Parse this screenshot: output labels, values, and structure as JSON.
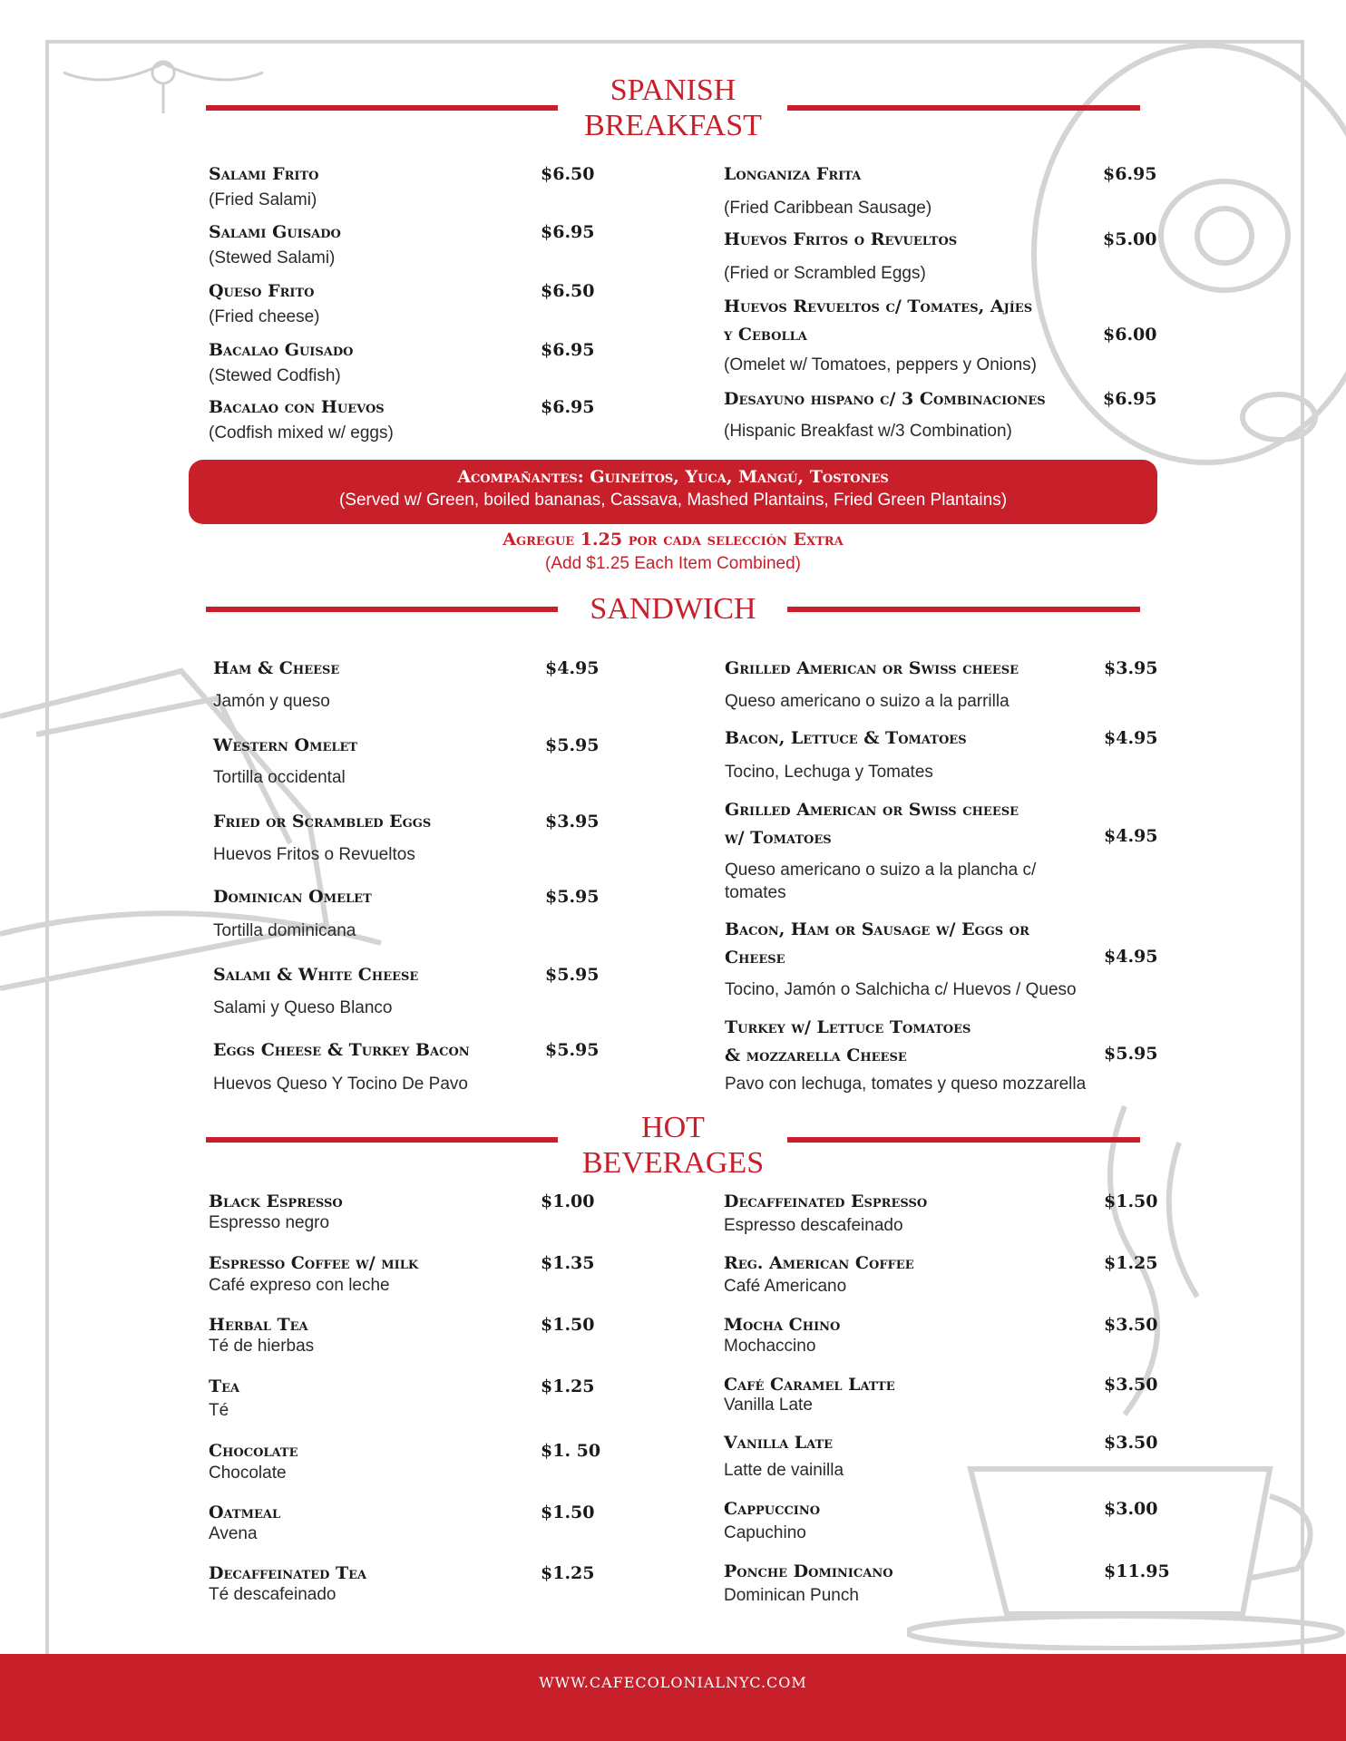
{
  "colors": {
    "accent": "#c8202b",
    "sketch": "#d0d0d0"
  },
  "sections": {
    "breakfast": {
      "title": [
        "SPANISH",
        "BREAKFAST"
      ],
      "left": [
        {
          "name": [
            "Salami Frito"
          ],
          "price": "$6.50",
          "desc": [
            "(Fried Salami)"
          ]
        },
        {
          "name": [
            "Salami Guisado"
          ],
          "price": "$6.95",
          "desc": [
            "(Stewed Salami)"
          ]
        },
        {
          "name": [
            "Queso Frito"
          ],
          "price": "$6.50",
          "desc": [
            "(Fried cheese)"
          ]
        },
        {
          "name": [
            "Bacalao Guisado"
          ],
          "price": "$6.95",
          "desc": [
            "(Stewed Codfish)"
          ]
        },
        {
          "name": [
            "Bacalao con Huevos"
          ],
          "price": "$6.95",
          "desc": [
            "(Codfish mixed w/ eggs)"
          ]
        }
      ],
      "right": [
        {
          "name": [
            "Longaniza Frita"
          ],
          "price": "$6.95",
          "desc": [
            "(Fried Caribbean Sausage)"
          ]
        },
        {
          "name": [
            "Huevos Fritos o Revueltos"
          ],
          "price": "$5.00",
          "desc": [
            "(Fried or Scrambled Eggs)"
          ]
        },
        {
          "name": [
            "Huevos Revueltos c/ Tomates, Ajíes",
            "y Cebolla"
          ],
          "price": "$6.00",
          "desc": [
            "(Omelet w/ Tomatoes, peppers y Onions)"
          ]
        },
        {
          "name": [
            "Desayuno hispano c/ 3 Combinaciones"
          ],
          "price": "$6.95",
          "desc": [
            "(Hispanic Breakfast w/3 Combination)"
          ]
        }
      ],
      "sides": {
        "title": "Acompañantes: Guineítos, Yuca, Mangú, Tostones",
        "subtitle": "(Served w/ Green, boiled bananas, Cassava, Mashed Plantains, Fried Green Plantains)"
      },
      "extra": {
        "title": "Agregue 1.25 por cada selección Extra",
        "subtitle": "(Add $1.25 Each Item Combined)"
      }
    },
    "sandwich": {
      "title": [
        "SANDWICH"
      ],
      "left": [
        {
          "name": [
            "Ham & Cheese"
          ],
          "price": "$4.95",
          "desc": [
            "Jamón y queso"
          ]
        },
        {
          "name": [
            "Western Omelet"
          ],
          "price": "$5.95",
          "desc": [
            "Tortilla occidental"
          ]
        },
        {
          "name": [
            "Fried or Scrambled Eggs"
          ],
          "price": "$3.95",
          "desc": [
            "Huevos Fritos o Revueltos"
          ]
        },
        {
          "name": [
            "Dominican Omelet"
          ],
          "price": "$5.95",
          "desc": [
            "Tortilla dominicana"
          ]
        },
        {
          "name": [
            "Salami & White Cheese"
          ],
          "price": "$5.95",
          "desc": [
            "Salami y Queso Blanco"
          ]
        },
        {
          "name": [
            "Eggs Cheese & Turkey Bacon"
          ],
          "price": "$5.95",
          "desc": [
            "Huevos Queso Y Tocino De Pavo"
          ]
        }
      ],
      "right": [
        {
          "name": [
            "Grilled American or Swiss cheese"
          ],
          "price": "$3.95",
          "desc": [
            "Queso americano o suizo a la parrilla"
          ]
        },
        {
          "name": [
            "Bacon, Lettuce & Tomatoes"
          ],
          "price": "$4.95",
          "desc": [
            "Tocino, Lechuga y Tomates"
          ]
        },
        {
          "name": [
            "Grilled American or Swiss cheese",
            "w/ Tomatoes"
          ],
          "price": "$4.95",
          "desc": [
            "Queso americano o suizo a la plancha c/",
            "tomates"
          ]
        },
        {
          "name": [
            "Bacon, Ham or Sausage w/ Eggs or",
            "Cheese"
          ],
          "price": "$4.95",
          "desc": [
            "Tocino, Jamón o Salchicha c/ Huevos / Queso"
          ]
        },
        {
          "name": [
            "Turkey w/ Lettuce Tomatoes",
            "& mozzarella Cheese"
          ],
          "price": "$5.95",
          "desc": [
            "Pavo con lechuga, tomates y queso mozzarella"
          ]
        }
      ]
    },
    "beverages": {
      "title": [
        "HOT",
        "BEVERAGES"
      ],
      "left": [
        {
          "name": [
            "Black Espresso"
          ],
          "price": "$1.00",
          "desc": [
            "Espresso negro"
          ]
        },
        {
          "name": [
            "Espresso Coffee w/ milk"
          ],
          "price": "$1.35",
          "desc": [
            "Café expreso con leche"
          ]
        },
        {
          "name": [
            "Herbal Tea"
          ],
          "price": "$1.50",
          "desc": [
            "Té de hierbas"
          ]
        },
        {
          "name": [
            "Tea"
          ],
          "price": "$1.25",
          "desc": [
            "Té"
          ]
        },
        {
          "name": [
            "Chocolate"
          ],
          "price": "$1. 50",
          "desc": [
            "Chocolate"
          ]
        },
        {
          "name": [
            "Oatmeal"
          ],
          "price": "$1.50",
          "desc": [
            "Avena"
          ]
        },
        {
          "name": [
            "Decaffeinated Tea"
          ],
          "price": "$1.25",
          "desc": [
            "Té descafeinado"
          ]
        }
      ],
      "right": [
        {
          "name": [
            "Decaffeinated Espresso"
          ],
          "price": "$1.50",
          "desc": [
            "Espresso descafeinado"
          ]
        },
        {
          "name": [
            "Reg. American Coffee"
          ],
          "price": "$1.25",
          "desc": [
            "Café Americano"
          ]
        },
        {
          "name": [
            "Mocha Chino"
          ],
          "price": "$3.50",
          "desc": [
            "Mochaccino"
          ]
        },
        {
          "name": [
            "Café Caramel Latte"
          ],
          "price": "$3.50",
          "desc": [
            "Vanilla Late"
          ]
        },
        {
          "name": [
            "Vanilla Late"
          ],
          "price": "$3.50",
          "desc": [
            "Latte de vainilla"
          ]
        },
        {
          "name": [
            "Cappuccino"
          ],
          "price": "$3.00",
          "desc": [
            "Capuchino"
          ]
        },
        {
          "name": [
            "Ponche Dominicano"
          ],
          "price": "$11.95",
          "desc": [
            "Dominican Punch"
          ]
        }
      ]
    }
  },
  "footer": {
    "website": "WWW.CAFECOLONIALNYC.COM"
  }
}
